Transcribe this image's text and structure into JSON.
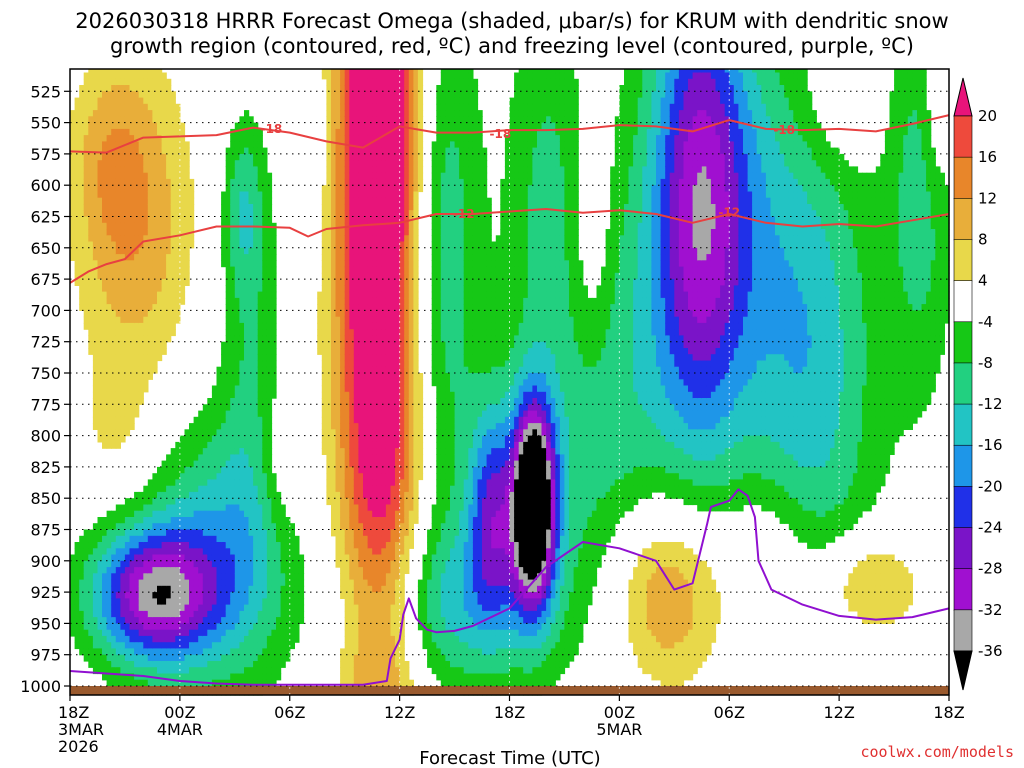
{
  "chart_data": {
    "type": "heatmap",
    "title_line1": "2026030318 HRRR Forecast Omega (shaded, μbar/s) for KRUM with dendritic snow",
    "title_line2": "growth region (contoured, red, ºC) and freezing level (contoured, purple, ºC)",
    "xlabel": "Forecast Time (UTC)",
    "credit": "coolwx.com/models",
    "xlim_hours": [
      0,
      48
    ],
    "ylim_hpa": [
      1000,
      500
    ],
    "y_ticks": [
      525,
      550,
      575,
      600,
      625,
      650,
      675,
      700,
      725,
      750,
      775,
      800,
      825,
      850,
      875,
      900,
      925,
      950,
      975,
      1000
    ],
    "x_ticks": [
      {
        "h": 0,
        "lines": [
          "18Z",
          "3MAR",
          "2026"
        ]
      },
      {
        "h": 6,
        "lines": [
          "00Z",
          "4MAR"
        ]
      },
      {
        "h": 12,
        "lines": [
          "06Z"
        ]
      },
      {
        "h": 18,
        "lines": [
          "12Z"
        ]
      },
      {
        "h": 24,
        "lines": [
          "18Z"
        ]
      },
      {
        "h": 30,
        "lines": [
          "00Z",
          "5MAR"
        ]
      },
      {
        "h": 36,
        "lines": [
          "06Z"
        ]
      },
      {
        "h": 42,
        "lines": [
          "12Z"
        ]
      },
      {
        "h": 48,
        "lines": [
          "18Z"
        ]
      }
    ],
    "colorbar": {
      "labels": [
        "20",
        "16",
        "12",
        "8",
        "4",
        "-4",
        "-8",
        "-12",
        "-16",
        "-20",
        "-24",
        "-28",
        "-32",
        "-36"
      ],
      "bins": [
        {
          "lo": 20,
          "hi": 99,
          "color": "#e8147a"
        },
        {
          "lo": 16,
          "hi": 20,
          "color": "#ee4a3c"
        },
        {
          "lo": 12,
          "hi": 16,
          "color": "#e8862a"
        },
        {
          "lo": 8,
          "hi": 12,
          "color": "#e8ae3a"
        },
        {
          "lo": 4,
          "hi": 8,
          "color": "#e8d84a"
        },
        {
          "lo": -4,
          "hi": 4,
          "color": "#ffffff"
        },
        {
          "lo": -8,
          "hi": -4,
          "color": "#16c816"
        },
        {
          "lo": -12,
          "hi": -8,
          "color": "#22d080"
        },
        {
          "lo": -16,
          "hi": -12,
          "color": "#22c4c4"
        },
        {
          "lo": -20,
          "hi": -16,
          "color": "#1e96e8"
        },
        {
          "lo": -24,
          "hi": -20,
          "color": "#2030e8"
        },
        {
          "lo": -28,
          "hi": -24,
          "color": "#7a14c8"
        },
        {
          "lo": -32,
          "hi": -28,
          "color": "#a010d0"
        },
        {
          "lo": -36,
          "hi": -32,
          "color": "#a8a8a8"
        },
        {
          "lo": -99,
          "hi": -36,
          "color": "#000000"
        }
      ]
    },
    "omega_field": [
      {
        "t": 3.5,
        "p": 628,
        "st": 2.2,
        "sp": 90,
        "amp": 12,
        "a": -6,
        "b": 8
      },
      {
        "t": 2,
        "p": 575,
        "st": 1.4,
        "sp": 50,
        "amp": 5
      },
      {
        "t": 2.5,
        "p": 800,
        "st": 1.6,
        "sp": 40,
        "amp": 4
      },
      {
        "t": 4.5,
        "p": 928,
        "st": 2.4,
        "sp": 38,
        "amp": -30,
        "a": -12,
        "b": 5
      },
      {
        "t": 8,
        "p": 895,
        "st": 2.8,
        "sp": 75,
        "amp": -14,
        "a": -6,
        "b": 20
      },
      {
        "t": 10,
        "p": 760,
        "st": 1.3,
        "sp": 120,
        "amp": -7
      },
      {
        "t": 9.5,
        "p": 620,
        "st": 0.8,
        "sp": 50,
        "amp": -10
      },
      {
        "t": 11.5,
        "p": 820,
        "st": 0.9,
        "sp": 40,
        "amp": 6
      },
      {
        "t": 13,
        "p": 560,
        "st": 0.8,
        "sp": 60,
        "amp": -5
      },
      {
        "t": 17,
        "p": 600,
        "st": 1.7,
        "sp": 320,
        "amp": 34
      },
      {
        "t": 20,
        "p": 650,
        "st": 1.6,
        "sp": 160,
        "amp": -14
      },
      {
        "t": 20.5,
        "p": 935,
        "st": 4.0,
        "sp": 50,
        "amp": -12,
        "a": 2,
        "b": 60
      },
      {
        "t": 23,
        "p": 860,
        "st": 0.9,
        "sp": 60,
        "amp": -18
      },
      {
        "t": 25.3,
        "p": 855,
        "st": 0.8,
        "sp": 55,
        "amp": -44
      },
      {
        "t": 25.5,
        "p": 850,
        "st": 2.2,
        "sp": 80,
        "amp": -8
      },
      {
        "t": 26,
        "p": 620,
        "st": 1.6,
        "sp": 130,
        "amp": -9,
        "a": 4,
        "b": 30
      },
      {
        "t": 28.5,
        "p": 640,
        "st": 0.8,
        "sp": 70,
        "amp": 6
      },
      {
        "t": 30,
        "p": 780,
        "st": 2.0,
        "sp": 140,
        "amp": -9
      },
      {
        "t": 32.5,
        "p": 925,
        "st": 2.4,
        "sp": 55,
        "amp": 15
      },
      {
        "t": 34.3,
        "p": 620,
        "st": 1.9,
        "sp": 150,
        "amp": -26,
        "a": 4,
        "b": 60
      },
      {
        "t": 36.5,
        "p": 620,
        "st": 2.8,
        "sp": 120,
        "amp": -8
      },
      {
        "t": 38.5,
        "p": 890,
        "st": 1.8,
        "sp": 40,
        "amp": 6
      },
      {
        "t": 40.5,
        "p": 750,
        "st": 2.6,
        "sp": 150,
        "amp": -14,
        "a": 0,
        "b": 0
      },
      {
        "t": 42,
        "p": 535,
        "st": 1.6,
        "sp": 40,
        "amp": 5
      },
      {
        "t": 43.5,
        "p": 920,
        "st": 2.0,
        "sp": 30,
        "amp": 11
      },
      {
        "t": 46.5,
        "p": 600,
        "st": 1.3,
        "sp": 120,
        "amp": -10
      },
      {
        "t": 47.3,
        "p": 540,
        "st": 0.6,
        "sp": 50,
        "amp": 6
      }
    ],
    "contours": [
      {
        "name": "-18",
        "color": "#e84040",
        "labels": [
          {
            "t": 11.0,
            "p": 555,
            "text": "-18"
          },
          {
            "t": 23.5,
            "p": 559,
            "text": "-18"
          },
          {
            "t": 39.0,
            "p": 556,
            "text": "-18"
          }
        ],
        "points": [
          [
            0,
            573
          ],
          [
            2,
            574
          ],
          [
            4,
            562
          ],
          [
            6,
            561
          ],
          [
            8,
            560
          ],
          [
            10,
            554
          ],
          [
            12,
            558
          ],
          [
            14,
            565
          ],
          [
            16,
            570
          ],
          [
            18,
            553
          ],
          [
            20,
            558
          ],
          [
            22,
            558
          ],
          [
            24,
            556
          ],
          [
            26,
            556
          ],
          [
            28,
            555
          ],
          [
            30,
            552
          ],
          [
            32,
            553
          ],
          [
            34,
            557
          ],
          [
            36,
            548
          ],
          [
            38,
            555
          ],
          [
            40,
            556
          ],
          [
            42,
            555
          ],
          [
            44,
            557
          ],
          [
            46,
            551
          ],
          [
            48,
            544
          ]
        ]
      },
      {
        "name": "-12",
        "color": "#e84040",
        "labels": [
          {
            "t": 21.5,
            "p": 623,
            "text": "-12"
          },
          {
            "t": 36.0,
            "p": 622,
            "text": "-12"
          }
        ],
        "points": [
          [
            0,
            678
          ],
          [
            1,
            669
          ],
          [
            2,
            663
          ],
          [
            3,
            659
          ],
          [
            4,
            645
          ],
          [
            6,
            640
          ],
          [
            8,
            633
          ],
          [
            10,
            633
          ],
          [
            12,
            634
          ],
          [
            13,
            641
          ],
          [
            14,
            635
          ],
          [
            16,
            632
          ],
          [
            18,
            630
          ],
          [
            20,
            623
          ],
          [
            22,
            623
          ],
          [
            24,
            621
          ],
          [
            26,
            619
          ],
          [
            28,
            622
          ],
          [
            30,
            620
          ],
          [
            32,
            623
          ],
          [
            34,
            630
          ],
          [
            36,
            623
          ],
          [
            38,
            630
          ],
          [
            40,
            633
          ],
          [
            42,
            631
          ],
          [
            44,
            633
          ],
          [
            46,
            628
          ],
          [
            48,
            623
          ]
        ]
      },
      {
        "name": "freezing-level",
        "color": "#9010d0",
        "labels": [],
        "points": [
          [
            0,
            988
          ],
          [
            2,
            990
          ],
          [
            4,
            992
          ],
          [
            6,
            996
          ],
          [
            8,
            998
          ],
          [
            10,
            999
          ],
          [
            12,
            999
          ],
          [
            16,
            999
          ],
          [
            17.3,
            996
          ],
          [
            17.5,
            978
          ],
          [
            18,
            963
          ],
          [
            18.2,
            943
          ],
          [
            18.5,
            930
          ],
          [
            18.9,
            946
          ],
          [
            19.5,
            955
          ],
          [
            20,
            957
          ],
          [
            21,
            956
          ],
          [
            22,
            952
          ],
          [
            24,
            938
          ],
          [
            26,
            905
          ],
          [
            28,
            885
          ],
          [
            30,
            890
          ],
          [
            32,
            900
          ],
          [
            33,
            923
          ],
          [
            34,
            918
          ],
          [
            34.8,
            870
          ],
          [
            35,
            857
          ],
          [
            36,
            852
          ],
          [
            36.5,
            843
          ],
          [
            37,
            848
          ],
          [
            37.4,
            865
          ],
          [
            37.6,
            900
          ],
          [
            38.3,
            923
          ],
          [
            40,
            935
          ],
          [
            42,
            944
          ],
          [
            44,
            947
          ],
          [
            46,
            945
          ],
          [
            48,
            938
          ]
        ]
      }
    ]
  }
}
